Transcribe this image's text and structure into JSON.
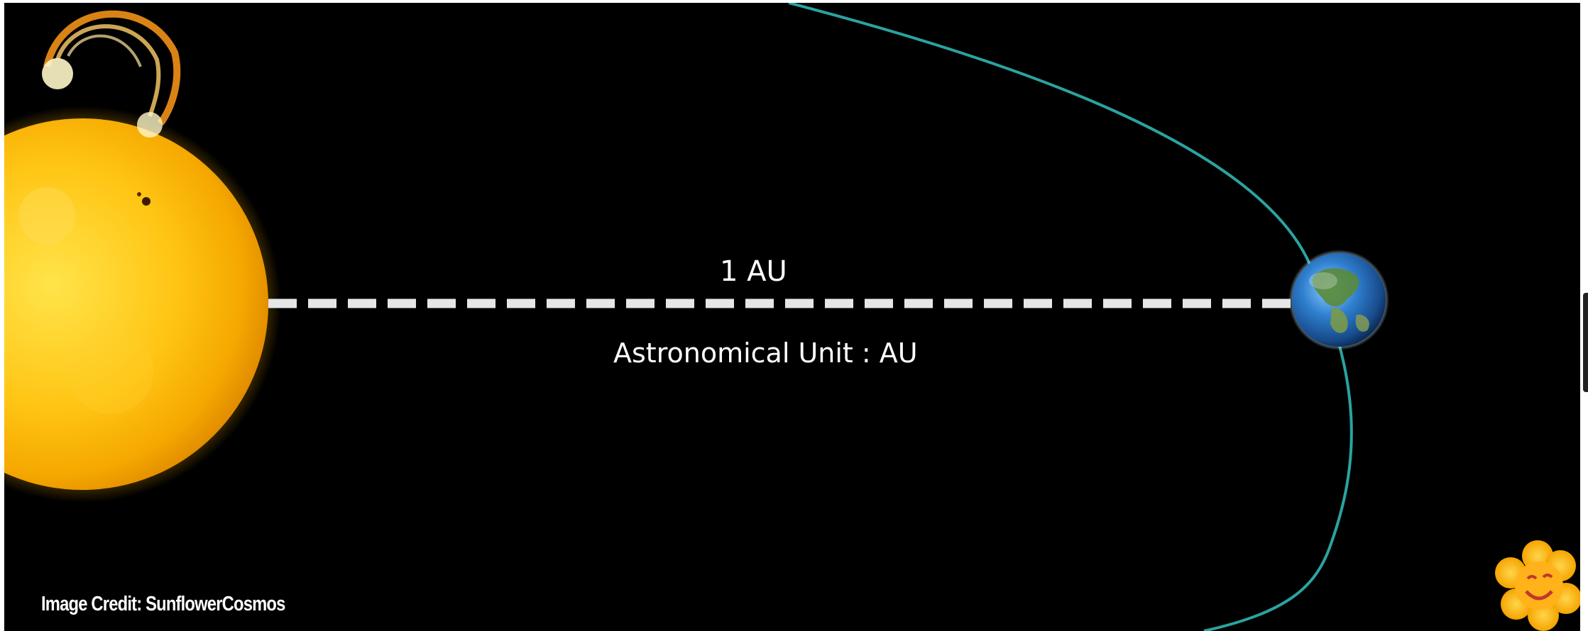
{
  "diagram": {
    "distance_label": "1 AU",
    "unit_label": "Astronomical Unit : AU",
    "credit": "Image Credit: SunflowerCosmos"
  },
  "colors": {
    "background": "#000000",
    "orbit": "#2aa3a0",
    "sun_core": "#ffd21a",
    "sun_edge": "#f0a000",
    "flare": "#ff9a1a",
    "dashed_line": "#e6e6e6",
    "earth_ocean": "#2a6fc0",
    "earth_land": "#5a8a3a",
    "text": "#ffffff"
  },
  "icons": {
    "sun": "sun-icon",
    "earth": "earth-icon",
    "mascot": "smiley-flower-icon"
  }
}
